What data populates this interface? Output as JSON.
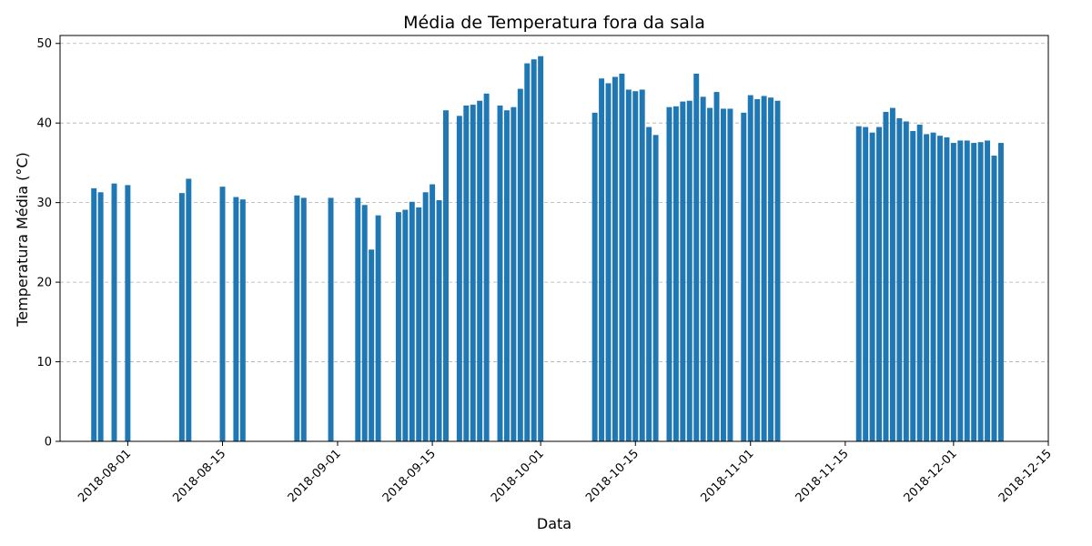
{
  "chart_data": {
    "type": "bar",
    "title": "Média de Temperatura fora da sala",
    "xlabel": "Data",
    "ylabel": "Temperatura Média (°C)",
    "xlim": [
      "2018-07-22",
      "2018-12-15"
    ],
    "ylim": [
      0,
      51
    ],
    "x_ticks": [
      "2018-08-01",
      "2018-08-15",
      "2018-09-01",
      "2018-09-15",
      "2018-10-01",
      "2018-10-15",
      "2018-11-01",
      "2018-11-15",
      "2018-12-01",
      "2018-12-15"
    ],
    "y_ticks": [
      0,
      10,
      20,
      30,
      40,
      50
    ],
    "grid": "y-dashed",
    "color": "#1f77b4",
    "x": [
      "2018-07-27",
      "2018-07-28",
      "2018-07-30",
      "2018-08-01",
      "2018-08-09",
      "2018-08-10",
      "2018-08-15",
      "2018-08-17",
      "2018-08-18",
      "2018-08-26",
      "2018-08-27",
      "2018-08-31",
      "2018-09-04",
      "2018-09-05",
      "2018-09-06",
      "2018-09-07",
      "2018-09-10",
      "2018-09-11",
      "2018-09-12",
      "2018-09-13",
      "2018-09-14",
      "2018-09-15",
      "2018-09-16",
      "2018-09-17",
      "2018-09-19",
      "2018-09-20",
      "2018-09-21",
      "2018-09-22",
      "2018-09-23",
      "2018-09-25",
      "2018-09-26",
      "2018-09-27",
      "2018-09-28",
      "2018-09-29",
      "2018-09-30",
      "2018-10-01",
      "2018-10-09",
      "2018-10-10",
      "2018-10-11",
      "2018-10-12",
      "2018-10-13",
      "2018-10-14",
      "2018-10-15",
      "2018-10-16",
      "2018-10-17",
      "2018-10-18",
      "2018-10-20",
      "2018-10-21",
      "2018-10-22",
      "2018-10-23",
      "2018-10-24",
      "2018-10-25",
      "2018-10-26",
      "2018-10-27",
      "2018-10-28",
      "2018-10-29",
      "2018-10-31",
      "2018-11-01",
      "2018-11-02",
      "2018-11-03",
      "2018-11-04",
      "2018-11-05",
      "2018-11-17",
      "2018-11-18",
      "2018-11-19",
      "2018-11-20",
      "2018-11-21",
      "2018-11-22",
      "2018-11-23",
      "2018-11-24",
      "2018-11-25",
      "2018-11-26",
      "2018-11-27",
      "2018-11-28",
      "2018-11-29",
      "2018-11-30",
      "2018-12-01",
      "2018-12-02",
      "2018-12-03",
      "2018-12-04",
      "2018-12-05",
      "2018-12-06",
      "2018-12-07",
      "2018-12-08"
    ],
    "values": [
      31.8,
      31.3,
      32.4,
      32.2,
      31.2,
      33.0,
      32.0,
      30.7,
      30.4,
      30.9,
      30.6,
      30.6,
      30.6,
      29.7,
      24.1,
      28.4,
      28.8,
      29.1,
      30.1,
      29.4,
      31.3,
      32.3,
      30.3,
      41.6,
      40.9,
      42.2,
      42.3,
      42.8,
      43.7,
      42.2,
      41.6,
      42.0,
      44.3,
      47.5,
      48.0,
      48.4,
      41.3,
      45.6,
      45.0,
      45.8,
      46.2,
      44.2,
      44.0,
      44.2,
      39.5,
      38.5,
      42.0,
      42.1,
      42.7,
      42.8,
      46.2,
      43.3,
      41.9,
      43.9,
      41.8,
      41.8,
      41.3,
      43.5,
      43.0,
      43.4,
      43.2,
      42.8,
      39.6,
      39.5,
      38.8,
      39.5,
      41.4,
      41.9,
      40.6,
      40.2,
      39.0,
      39.8,
      38.6,
      38.8,
      38.4,
      38.2,
      37.5,
      37.8,
      37.8,
      37.5,
      37.6,
      37.8,
      35.9,
      37.5
    ]
  }
}
